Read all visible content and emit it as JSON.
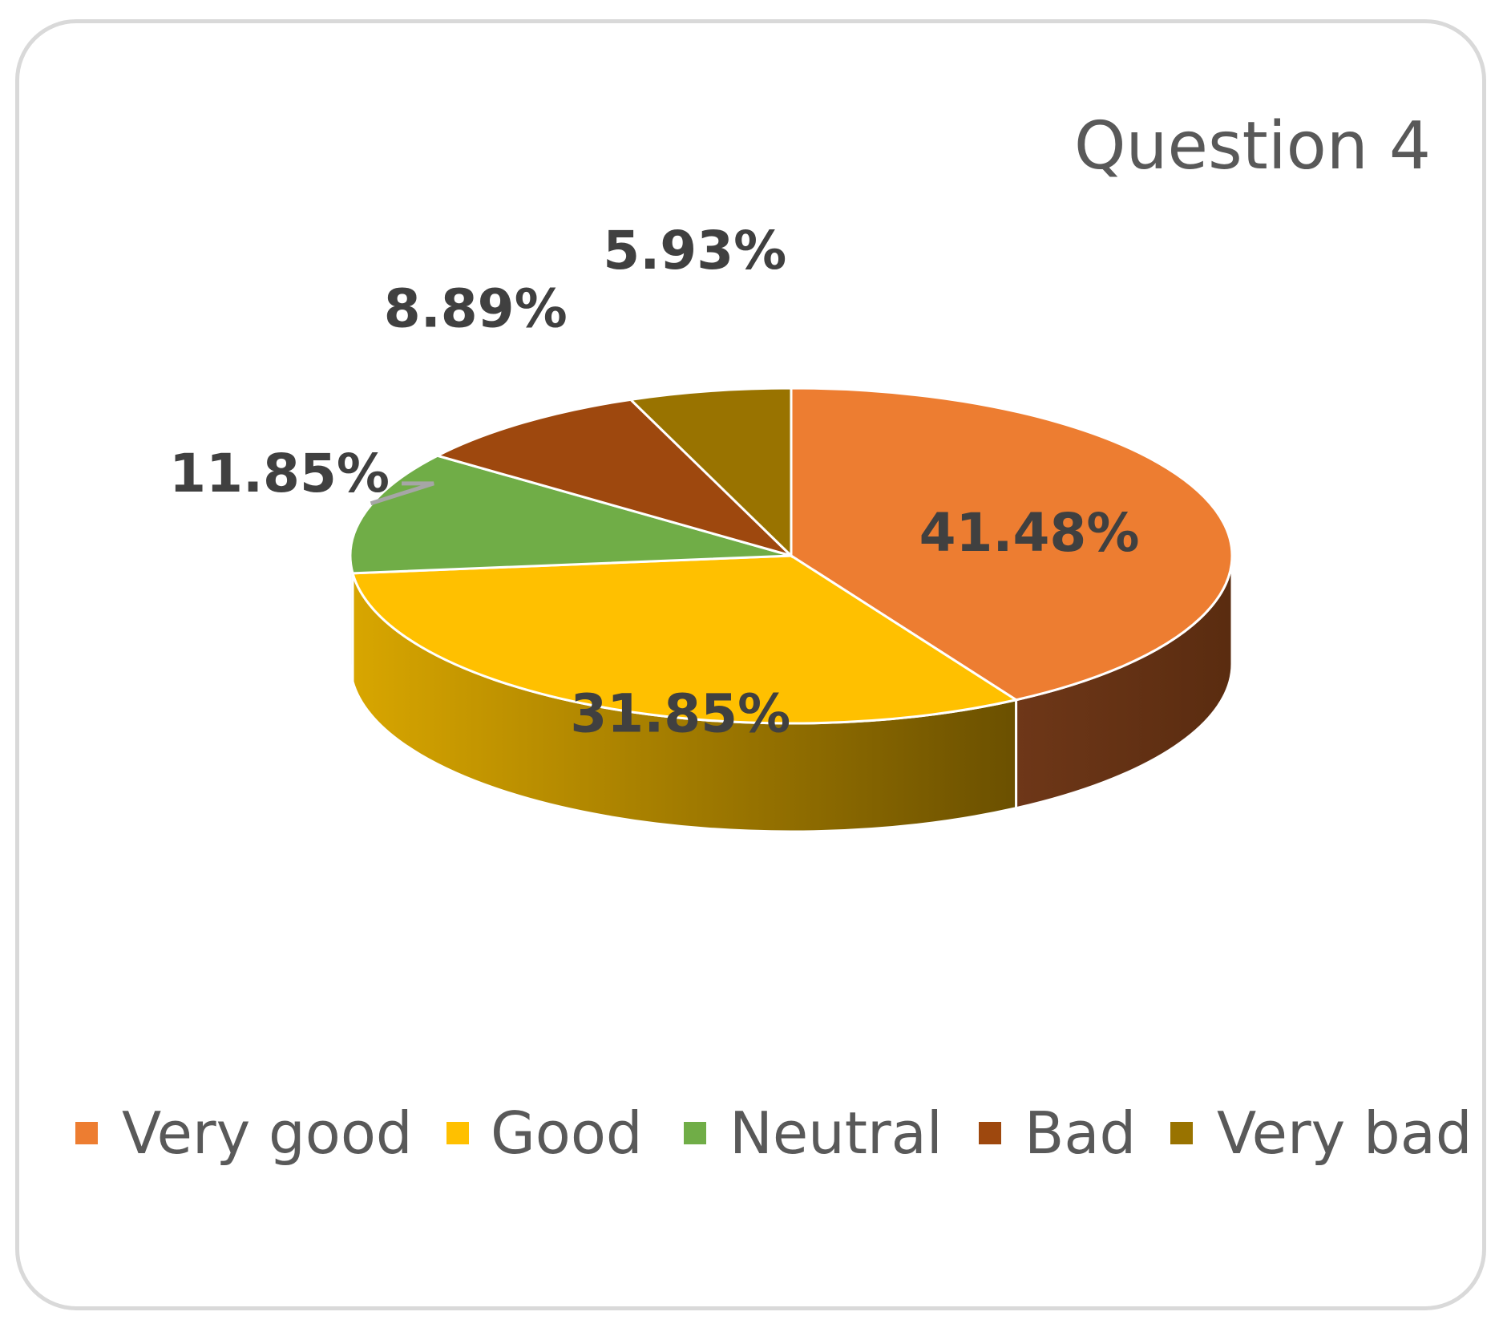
{
  "chart_data": {
    "type": "pie",
    "title": "Question 4",
    "categories": [
      "Very good",
      "Good",
      "Neutral",
      "Bad",
      "Very bad"
    ],
    "values": [
      41.48,
      31.85,
      11.85,
      8.89,
      5.93
    ],
    "data_labels": [
      "41.48%",
      "31.85%",
      "11.85%",
      "8.89%",
      "5.93%"
    ],
    "colors": [
      "#ed7d31",
      "#ffc000",
      "#70ad47",
      "#9e480e",
      "#997300"
    ],
    "legend_position": "bottom",
    "style": "3d"
  }
}
